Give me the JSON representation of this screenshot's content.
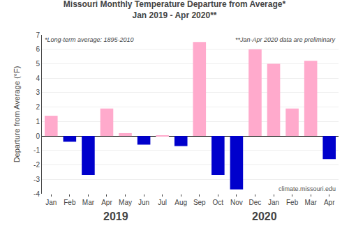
{
  "chart_data": {
    "type": "bar",
    "title": "Missouri Monthly Temperature Departure from Average*",
    "subtitle": "Jan 2019 - Apr 2020**",
    "categories": [
      "Jan",
      "Feb",
      "Mar",
      "Apr",
      "May",
      "Jun",
      "Jul",
      "Aug",
      "Sep",
      "Oct",
      "Nov",
      "Dec",
      "Jan",
      "Feb",
      "Mar",
      "Apr"
    ],
    "values": [
      1.4,
      -0.4,
      -2.7,
      1.9,
      0.2,
      -0.6,
      0.05,
      -0.7,
      6.5,
      -2.7,
      -3.7,
      6.0,
      5.0,
      1.9,
      5.2,
      -1.6
    ],
    "colors": [
      "#ffaacc",
      "#0000cc",
      "#0000cc",
      "#ffaacc",
      "#ffaacc",
      "#0000cc",
      "#ffaacc",
      "#0000cc",
      "#ffaacc",
      "#0000cc",
      "#0000cc",
      "#ffaacc",
      "#ffaacc",
      "#ffaacc",
      "#ffaacc",
      "#0000cc"
    ],
    "y_label": "Departure from Average (°F)",
    "ylim": [
      -4,
      7
    ],
    "yticks": [
      -4,
      -3,
      -2,
      -1,
      0,
      1,
      2,
      3,
      4,
      5,
      6,
      7
    ],
    "grid": true,
    "annotations": [
      "*Long-term average: 1895-2010",
      "**Jan-Apr 2020 data are preliminary",
      "climate.missouri.edu",
      "2019",
      "2020"
    ]
  }
}
